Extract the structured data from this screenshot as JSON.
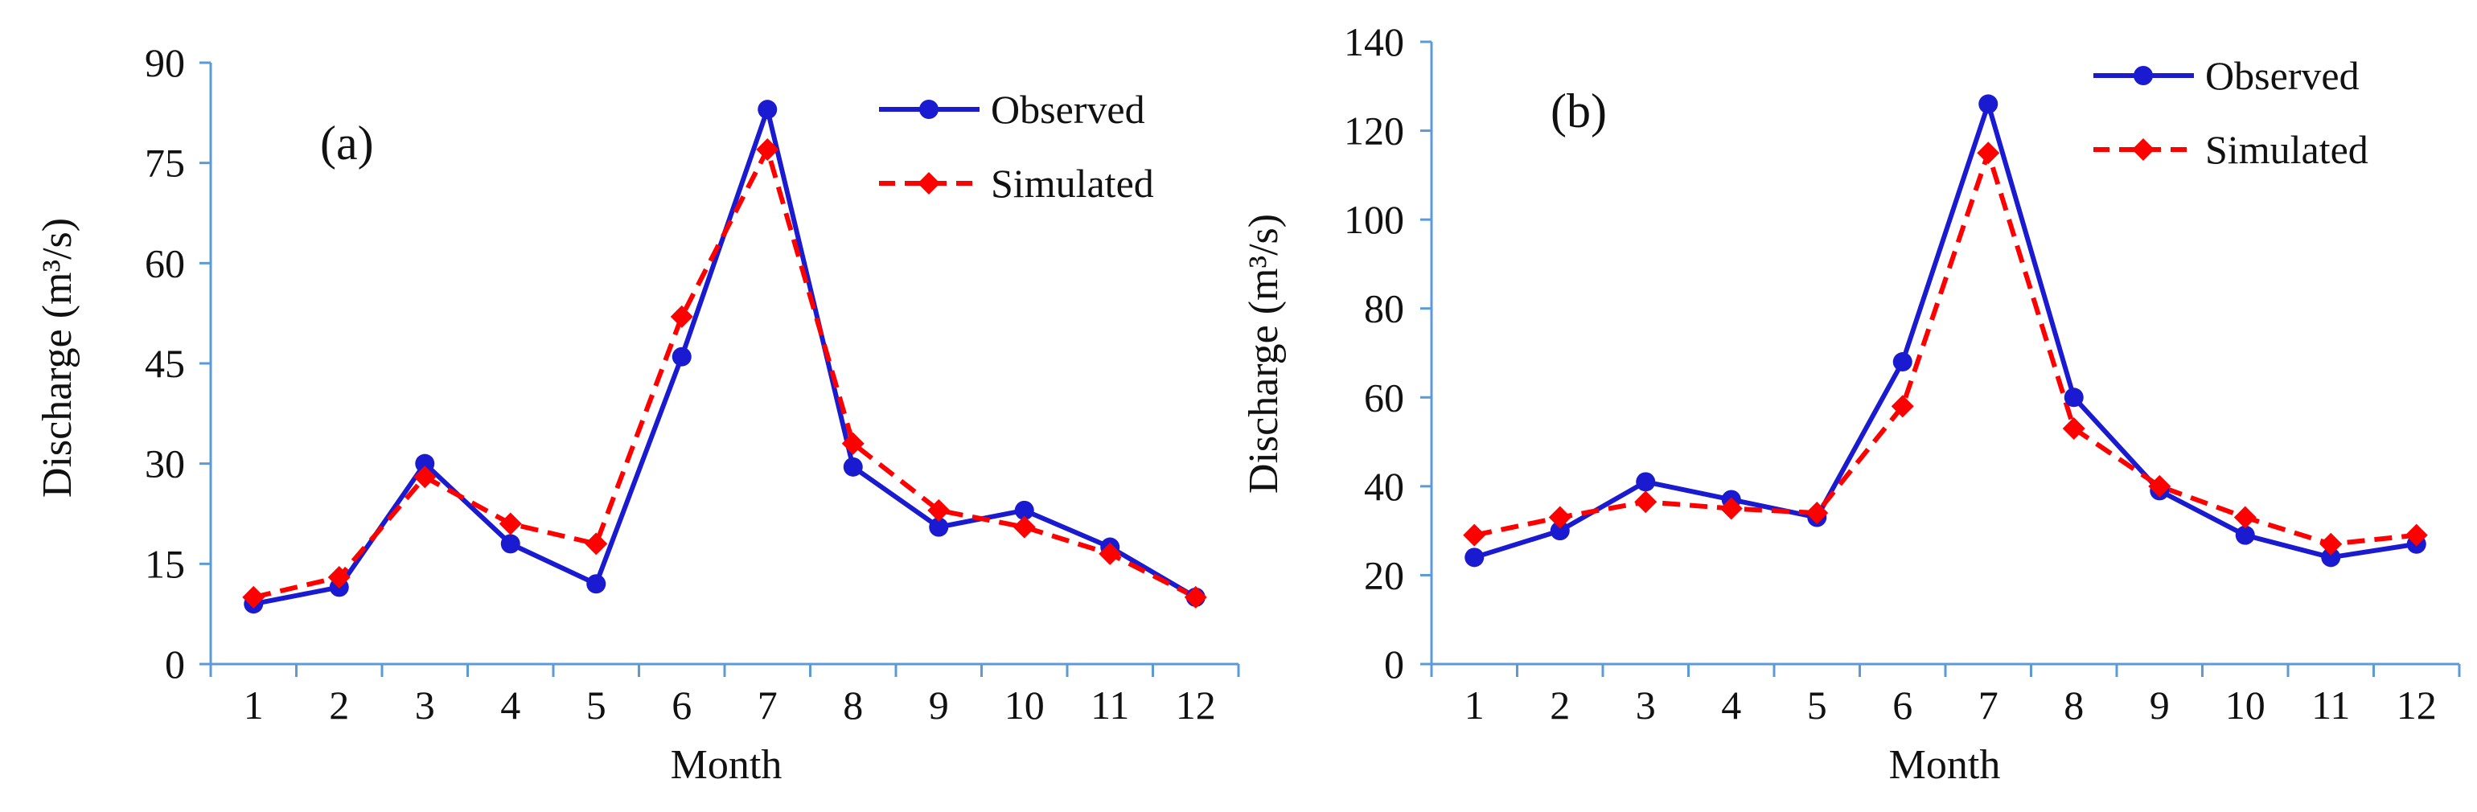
{
  "colors": {
    "observed": "#1a1ad0",
    "simulated": "#ff0000",
    "axis": "#5b9bd5",
    "text": "#111111"
  },
  "chart_data": [
    {
      "type": "line",
      "panel_label": "(a)",
      "categories": [
        "1",
        "2",
        "3",
        "4",
        "5",
        "6",
        "7",
        "8",
        "9",
        "10",
        "11",
        "12"
      ],
      "series": [
        {
          "name": "Observed",
          "style": "solid-circle",
          "values": [
            9,
            11.5,
            30,
            18,
            12,
            46,
            83,
            29.5,
            20.5,
            23,
            17.5,
            10
          ]
        },
        {
          "name": "Simulated",
          "style": "dashed-diamond",
          "values": [
            10,
            13,
            28,
            21,
            18,
            52,
            77,
            33,
            23,
            20.5,
            16.5,
            10
          ]
        }
      ],
      "xlabel": "Month",
      "ylabel": "Discharge (m³/s)",
      "ylim": [
        0,
        90
      ],
      "yticks": [
        "0",
        "15",
        "30",
        "45",
        "60",
        "75",
        "90"
      ],
      "legend": "top-right"
    },
    {
      "type": "line",
      "panel_label": "(b)",
      "categories": [
        "1",
        "2",
        "3",
        "4",
        "5",
        "6",
        "7",
        "8",
        "9",
        "10",
        "11",
        "12"
      ],
      "series": [
        {
          "name": "Observed",
          "style": "solid-circle",
          "values": [
            24,
            30,
            41,
            37,
            33,
            68,
            126,
            60,
            39,
            29,
            24,
            27
          ]
        },
        {
          "name": "Simulated",
          "style": "dashed-diamond",
          "values": [
            29,
            33,
            36.5,
            35,
            34,
            58,
            115,
            53,
            40,
            33,
            27,
            29
          ]
        }
      ],
      "xlabel": "Month",
      "ylabel": "Discharge (m³/s)",
      "ylim": [
        0,
        140
      ],
      "yticks": [
        "0",
        "20",
        "40",
        "60",
        "80",
        "100",
        "120",
        "140"
      ],
      "legend": "top-right"
    }
  ]
}
